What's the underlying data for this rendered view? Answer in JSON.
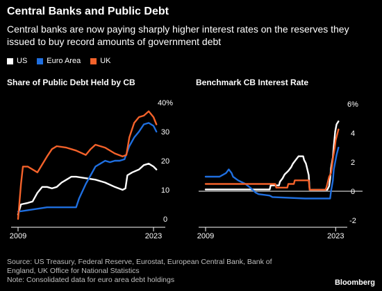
{
  "title": "Central Banks and Public Debt",
  "subtitle": "Central banks are now paying sharply higher interest rates on the reserves they issued to buy record amounts of government debt",
  "legend": [
    {
      "label": "US",
      "color": "#ffffff"
    },
    {
      "label": "Euro Area",
      "color": "#1f6fe0"
    },
    {
      "label": "UK",
      "color": "#f4622a"
    }
  ],
  "source_lines": [
    "Source: US Treasury, Federal Reserve, Eurostat, European Central Bank, Bank of",
    "England, UK Office for National Statistics",
    "Note: Consolidated data for euro area debt holdings"
  ],
  "brand": "Bloomberg",
  "chart_data": [
    {
      "type": "line",
      "title": "Share of Public Debt Held by CB",
      "xlim": [
        2009,
        2023.5
      ],
      "ylim": [
        0,
        40
      ],
      "y_ticks": [
        "40%",
        "30",
        "20",
        "10",
        "0"
      ],
      "y_tick_values": [
        40,
        30,
        20,
        10,
        0
      ],
      "x_ticks": [
        "2009",
        "2023"
      ],
      "x_tick_values": [
        2009,
        2023
      ],
      "grid": false,
      "series": [
        {
          "name": "US",
          "color": "#ffffff",
          "points": [
            [
              2009.0,
              1.5
            ],
            [
              2009.3,
              5
            ],
            [
              2010,
              5.5
            ],
            [
              2010.5,
              6
            ],
            [
              2011,
              9
            ],
            [
              2011.5,
              11
            ],
            [
              2012,
              11
            ],
            [
              2012.5,
              10.5
            ],
            [
              2013,
              11
            ],
            [
              2013.5,
              12.5
            ],
            [
              2014,
              13.5
            ],
            [
              2014.5,
              14.5
            ],
            [
              2015,
              14.5
            ],
            [
              2016,
              14
            ],
            [
              2017,
              13.5
            ],
            [
              2018,
              12.5
            ],
            [
              2019,
              11
            ],
            [
              2019.8,
              10
            ],
            [
              2020.1,
              10.5
            ],
            [
              2020.3,
              15
            ],
            [
              2020.8,
              16
            ],
            [
              2021.5,
              17
            ],
            [
              2022,
              18.5
            ],
            [
              2022.5,
              19
            ],
            [
              2023,
              18
            ],
            [
              2023.3,
              17
            ]
          ]
        },
        {
          "name": "Euro Area",
          "color": "#1f6fe0",
          "points": [
            [
              2009.0,
              2.5
            ],
            [
              2010,
              3
            ],
            [
              2011,
              3.5
            ],
            [
              2012,
              4
            ],
            [
              2014,
              4
            ],
            [
              2015.0,
              4
            ],
            [
              2015.3,
              7
            ],
            [
              2016,
              12
            ],
            [
              2016.5,
              15
            ],
            [
              2017,
              18
            ],
            [
              2017.5,
              19
            ],
            [
              2018,
              20
            ],
            [
              2018.5,
              19.5
            ],
            [
              2019,
              20
            ],
            [
              2019.5,
              20
            ],
            [
              2020.0,
              20.5
            ],
            [
              2020.5,
              25
            ],
            [
              2021,
              28
            ],
            [
              2021.5,
              30
            ],
            [
              2022,
              32.5
            ],
            [
              2022.5,
              33
            ],
            [
              2023,
              32
            ],
            [
              2023.3,
              30
            ]
          ]
        },
        {
          "name": "UK",
          "color": "#f4622a",
          "points": [
            [
              2009.0,
              0
            ],
            [
              2009.3,
              12
            ],
            [
              2009.5,
              18
            ],
            [
              2010,
              18
            ],
            [
              2011,
              16
            ],
            [
              2012,
              21.5
            ],
            [
              2012.5,
              24
            ],
            [
              2013,
              25
            ],
            [
              2014,
              24.5
            ],
            [
              2015,
              23.5
            ],
            [
              2016,
              22
            ],
            [
              2016.5,
              24
            ],
            [
              2017,
              25.5
            ],
            [
              2018,
              24.5
            ],
            [
              2019,
              22.5
            ],
            [
              2019.8,
              21.5
            ],
            [
              2020.2,
              22
            ],
            [
              2020.5,
              28
            ],
            [
              2021,
              33
            ],
            [
              2021.5,
              35
            ],
            [
              2022,
              35.5
            ],
            [
              2022.5,
              37
            ],
            [
              2023,
              35
            ],
            [
              2023.3,
              32.5
            ]
          ]
        }
      ]
    },
    {
      "type": "line",
      "title": "Benchmark CB Interest Rate",
      "xlim": [
        2009,
        2023.5
      ],
      "ylim": [
        -2,
        6
      ],
      "y_ticks": [
        "6%",
        "4",
        "2",
        "0",
        "-2"
      ],
      "y_tick_values": [
        6,
        4,
        2,
        0,
        -2
      ],
      "x_ticks": [
        "2009",
        "2023"
      ],
      "x_tick_values": [
        2009,
        2023
      ],
      "grid": false,
      "zero_line": true,
      "series": [
        {
          "name": "US",
          "color": "#ffffff",
          "points": [
            [
              2009,
              0.12
            ],
            [
              2015.9,
              0.12
            ],
            [
              2016,
              0.4
            ],
            [
              2016.9,
              0.4
            ],
            [
              2017,
              0.65
            ],
            [
              2017.3,
              0.9
            ],
            [
              2017.5,
              1.15
            ],
            [
              2017.9,
              1.4
            ],
            [
              2018.2,
              1.65
            ],
            [
              2018.4,
              1.9
            ],
            [
              2018.7,
              2.15
            ],
            [
              2019,
              2.4
            ],
            [
              2019.5,
              2.4
            ],
            [
              2019.6,
              2.15
            ],
            [
              2019.8,
              1.9
            ],
            [
              2019.9,
              1.65
            ],
            [
              2020.1,
              1.1
            ],
            [
              2020.2,
              0.1
            ],
            [
              2022.1,
              0.1
            ],
            [
              2022.3,
              0.35
            ],
            [
              2022.4,
              0.85
            ],
            [
              2022.5,
              1.6
            ],
            [
              2022.7,
              2.35
            ],
            [
              2022.8,
              3.1
            ],
            [
              2022.95,
              4.1
            ],
            [
              2023.1,
              4.6
            ],
            [
              2023.3,
              4.8
            ]
          ]
        },
        {
          "name": "Euro Area",
          "color": "#1f6fe0",
          "points": [
            [
              2009,
              1.0
            ],
            [
              2010.5,
              1.0
            ],
            [
              2011.2,
              1.25
            ],
            [
              2011.5,
              1.5
            ],
            [
              2011.8,
              1.25
            ],
            [
              2011.95,
              1.0
            ],
            [
              2012.5,
              0.75
            ],
            [
              2013.3,
              0.5
            ],
            [
              2013.8,
              0.25
            ],
            [
              2014.4,
              -0.1
            ],
            [
              2014.7,
              -0.2
            ],
            [
              2015.9,
              -0.3
            ],
            [
              2016.2,
              -0.4
            ],
            [
              2019.7,
              -0.5
            ],
            [
              2022.4,
              -0.5
            ],
            [
              2022.5,
              0
            ],
            [
              2022.7,
              0.75
            ],
            [
              2022.8,
              1.5
            ],
            [
              2022.95,
              2.0
            ],
            [
              2023.1,
              2.5
            ],
            [
              2023.3,
              3.0
            ]
          ]
        },
        {
          "name": "UK",
          "color": "#f4622a",
          "points": [
            [
              2009,
              0.5
            ],
            [
              2016.5,
              0.5
            ],
            [
              2016.6,
              0.25
            ],
            [
              2017.8,
              0.25
            ],
            [
              2017.9,
              0.5
            ],
            [
              2018.5,
              0.5
            ],
            [
              2018.6,
              0.75
            ],
            [
              2020.1,
              0.75
            ],
            [
              2020.2,
              0.1
            ],
            [
              2021.9,
              0.1
            ],
            [
              2022,
              0.25
            ],
            [
              2022.1,
              0.5
            ],
            [
              2022.3,
              1.0
            ],
            [
              2022.5,
              1.25
            ],
            [
              2022.6,
              1.75
            ],
            [
              2022.7,
              2.25
            ],
            [
              2022.9,
              3.0
            ],
            [
              2023,
              3.5
            ],
            [
              2023.2,
              4.0
            ],
            [
              2023.3,
              4.25
            ]
          ]
        }
      ]
    }
  ]
}
